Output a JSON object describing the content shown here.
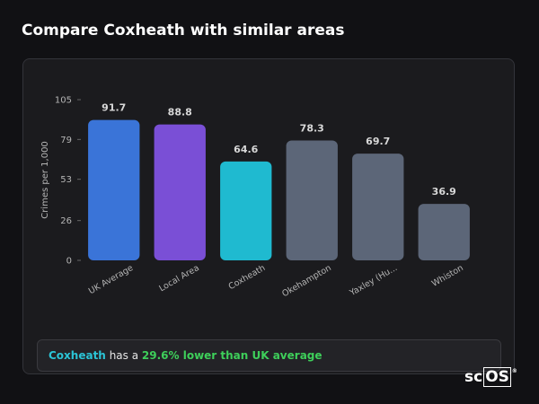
{
  "chart_data": {
    "type": "bar",
    "title": "Compare Coxheath with similar areas",
    "y_label": "Crimes per 1,000",
    "categories": [
      "UK Average",
      "Local Area",
      "Coxheath",
      "Okehampton",
      "Yaxley (Hu...",
      "Whiston"
    ],
    "values": [
      91.7,
      88.8,
      64.6,
      78.3,
      69.7,
      36.9
    ],
    "colors": [
      "#3a74d8",
      "#7a4fd6",
      "#1fbad0",
      "#5c6678",
      "#5c6678",
      "#5c6678"
    ],
    "ylim": [
      0,
      105
    ],
    "yticks": [
      0,
      26,
      53,
      79,
      105
    ],
    "grid": false,
    "annotation": {
      "area": "Coxheath",
      "text": "has a",
      "highlight": "29.6% lower than UK average"
    },
    "logo": {
      "prefix": "sc",
      "boxed": "OS",
      "mark": "®"
    }
  }
}
